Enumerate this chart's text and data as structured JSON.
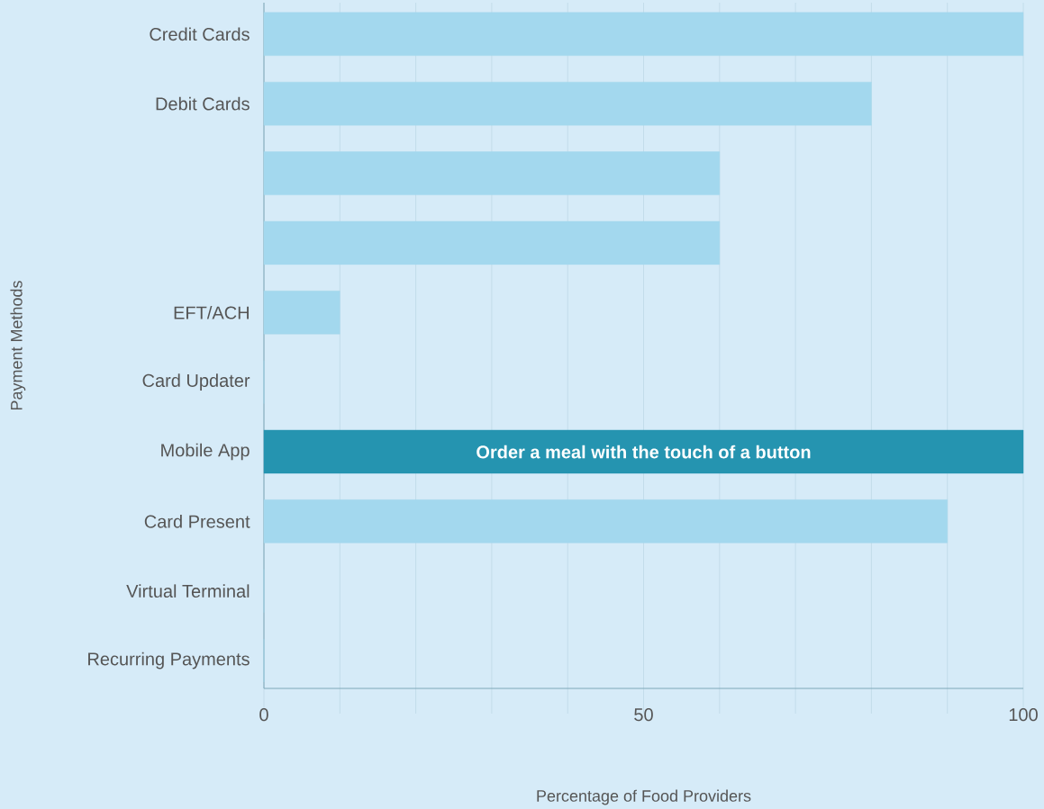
{
  "chart_data": {
    "type": "bar",
    "orientation": "horizontal",
    "xlabel": "Percentage of Food Providers",
    "ylabel": "Payment Methods",
    "categories": [
      "Credit Cards",
      "Debit Cards",
      null,
      null,
      "EFT/ACH",
      "Card Updater",
      "Mobile App",
      "Card Present",
      "Virtual Terminal",
      "Recurring Payments"
    ],
    "values": [
      100,
      80,
      60,
      60,
      10,
      0,
      100,
      90,
      0,
      0
    ],
    "colors": [
      "#a3d8ee",
      "#a3d8ee",
      "#a3d8ee",
      "#a3d8ee",
      "#a3d8ee",
      "#a3d8ee",
      "#2594b0",
      "#a3d8ee",
      "#a3d8ee",
      "#a3d8ee"
    ],
    "xlim": [
      0,
      100
    ],
    "xticks": [
      0,
      {
        "value": 10,
        "label": null
      },
      {
        "value": 20,
        "label": null
      },
      {
        "value": 30,
        "label": null
      },
      {
        "value": 40,
        "label": null
      },
      50,
      {
        "value": 60,
        "label": null
      },
      {
        "value": 70,
        "label": null
      },
      {
        "value": 80,
        "label": null
      },
      {
        "value": 90,
        "label": null
      },
      100
    ],
    "grid": "x",
    "annotations": [
      "Order a meal with the touch of a button"
    ]
  }
}
